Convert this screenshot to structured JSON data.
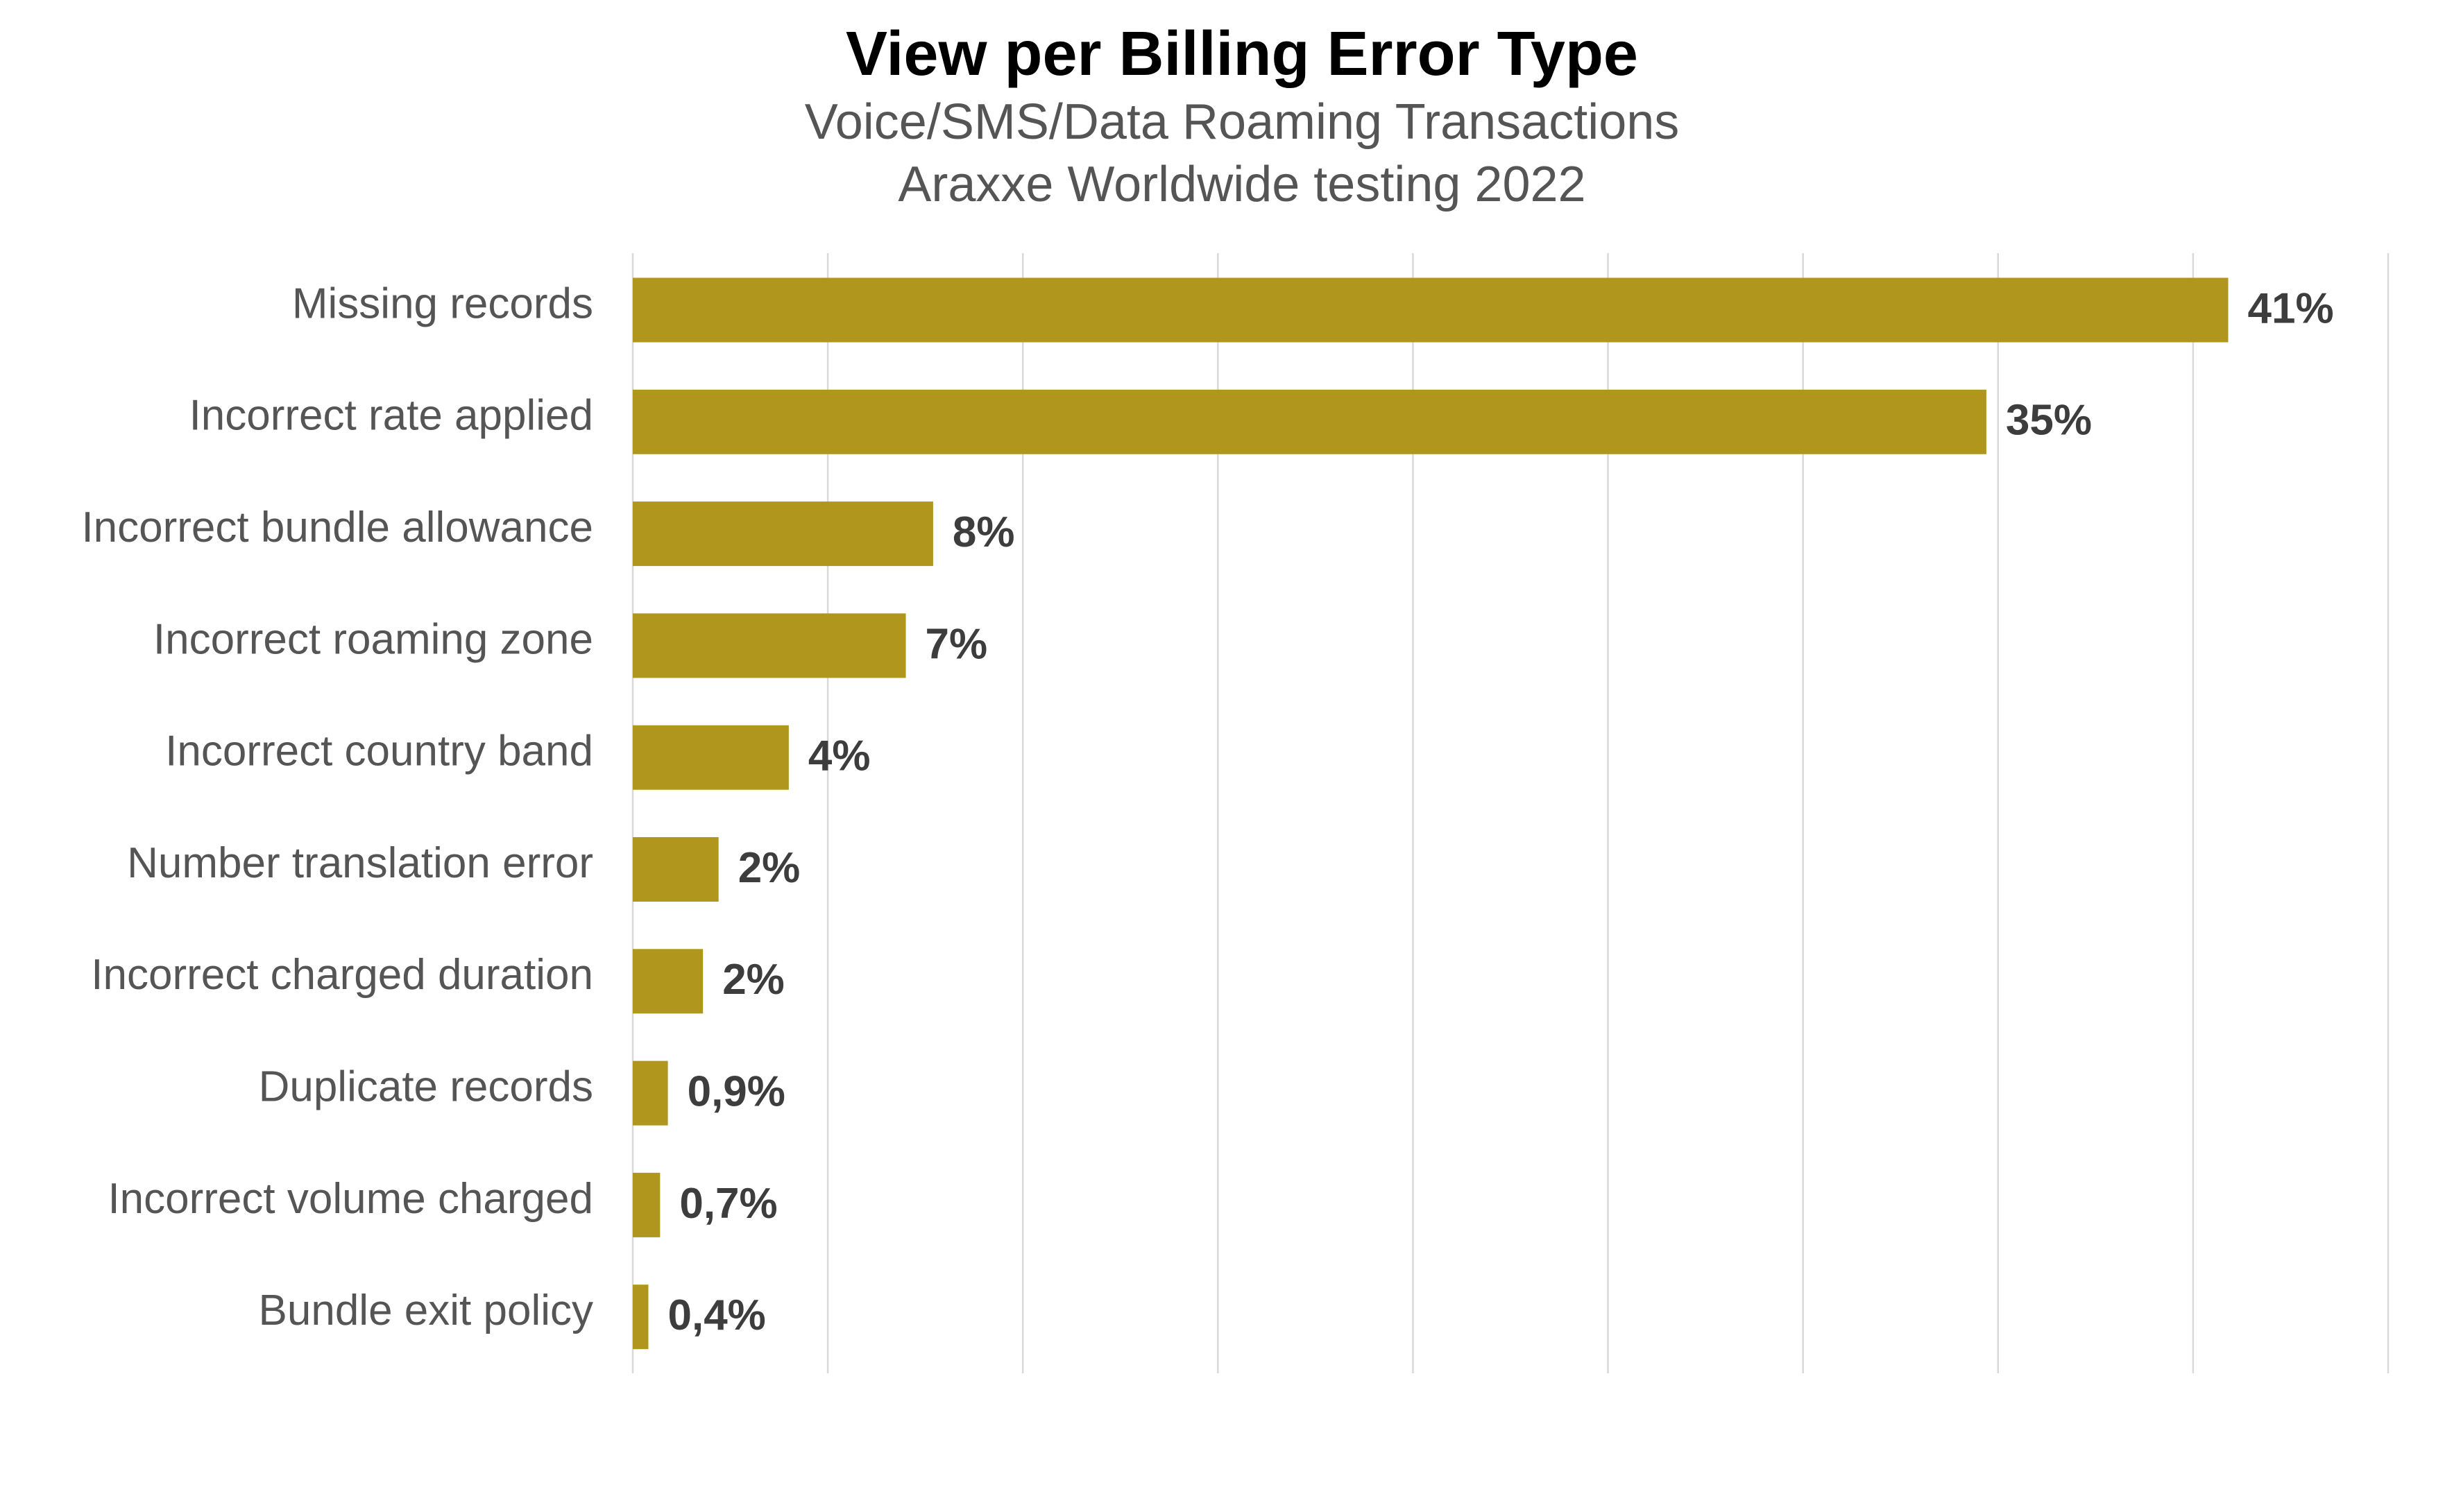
{
  "chart_data": {
    "type": "bar",
    "orientation": "horizontal",
    "title": "View per Billing Error Type",
    "subtitle_lines": [
      "Voice/SMS/Data Roaming Transactions",
      "Araxxe Worldwide testing 2022"
    ],
    "categories": [
      "Missing records",
      "Incorrect rate applied",
      "Incorrect bundle allowance",
      "Incorrect roaming zone",
      "Incorrect country band",
      "Number translation error",
      "Incorrect charged duration",
      "Duplicate records",
      "Incorrect volume charged",
      "Bundle exit policy"
    ],
    "values": [
      40.9,
      34.7,
      7.7,
      7.0,
      4.0,
      2.2,
      1.8,
      0.9,
      0.7,
      0.4
    ],
    "value_labels": [
      "41%",
      "35%",
      "8%",
      "7%",
      "4%",
      "2%",
      "2%",
      "0,9%",
      "0,7%",
      "0,4%"
    ],
    "xlabel": "",
    "ylabel": "",
    "xlim": [
      0,
      45
    ],
    "x_gridlines": [
      0,
      5,
      10,
      15,
      20,
      25,
      30,
      35,
      40,
      45
    ],
    "grid": true,
    "x_tick_labels_shown": false,
    "legend": "none",
    "bar_color": "#b0961c"
  }
}
